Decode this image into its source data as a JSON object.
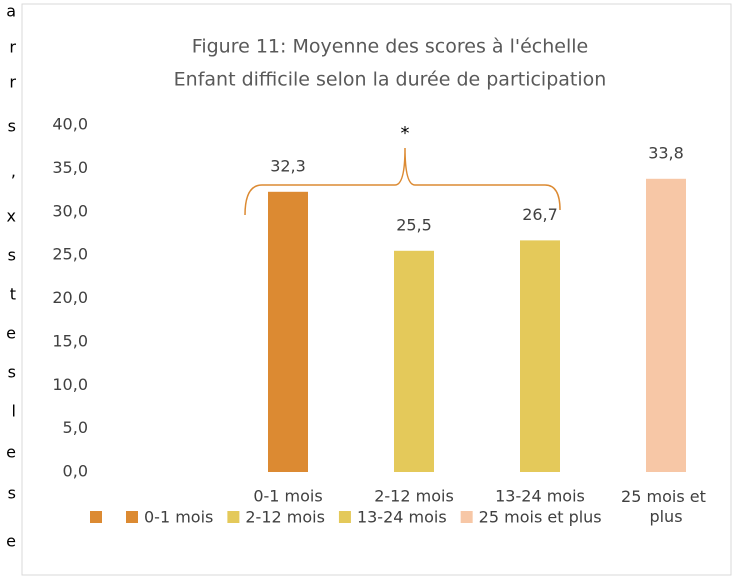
{
  "side_text": [
    "a",
    "r",
    "r",
    "s",
    ",",
    "x",
    "s",
    "t",
    "e",
    "s",
    "l",
    "e",
    "s",
    "e"
  ],
  "chart_data": {
    "type": "bar",
    "title": [
      "Figure 11: Moyenne des scores à l'échelle",
      "Enfant difficile selon la durée de participation"
    ],
    "categories": [
      null,
      "0-1 mois",
      "2-12 mois",
      "13-24 mois",
      "25 mois et plus"
    ],
    "values": [
      null,
      32.3,
      25.5,
      26.7,
      33.8
    ],
    "value_labels": [
      null,
      "32,3",
      "25,5",
      "26,7",
      "33,8"
    ],
    "colors": [
      "#dc8a32",
      "#dc8a32",
      "#e4c95a",
      "#e4c95a",
      "#f7c7a6"
    ],
    "ylim": [
      0,
      40
    ],
    "yticks": [
      {
        "value": 0,
        "label": "0,0"
      },
      {
        "value": 5,
        "label": "5,0"
      },
      {
        "value": 10,
        "label": "10,0"
      },
      {
        "value": 15,
        "label": "15,0"
      },
      {
        "value": 20,
        "label": "20,0"
      },
      {
        "value": 25,
        "label": "25,0"
      },
      {
        "value": 30,
        "label": "30,0"
      },
      {
        "value": 35,
        "label": "35,0"
      },
      {
        "value": 40,
        "label": "40,0"
      }
    ],
    "grid": false,
    "annotation": "*",
    "legend": "bottom"
  }
}
